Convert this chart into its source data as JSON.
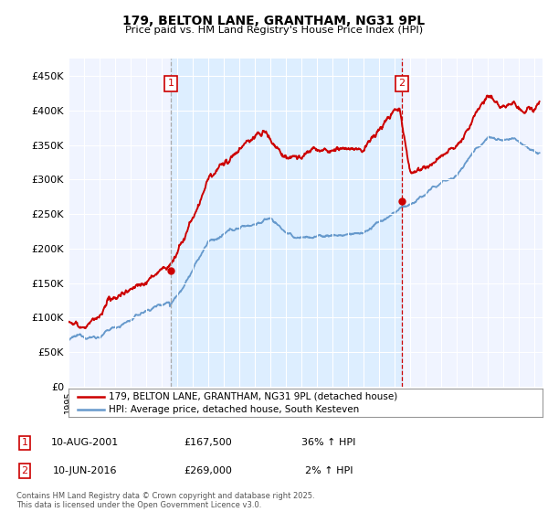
{
  "title": "179, BELTON LANE, GRANTHAM, NG31 9PL",
  "subtitle": "Price paid vs. HM Land Registry's House Price Index (HPI)",
  "legend_line1": "179, BELTON LANE, GRANTHAM, NG31 9PL (detached house)",
  "legend_line2": "HPI: Average price, detached house, South Kesteven",
  "annotation1_date": "10-AUG-2001",
  "annotation1_price": "£167,500",
  "annotation1_hpi": "36% ↑ HPI",
  "annotation2_date": "10-JUN-2016",
  "annotation2_price": "£269,000",
  "annotation2_hpi": "2% ↑ HPI",
  "footer": "Contains HM Land Registry data © Crown copyright and database right 2025.\nThis data is licensed under the Open Government Licence v3.0.",
  "red_color": "#cc0000",
  "blue_color": "#6699cc",
  "shade_color": "#ddeeff",
  "annotation_color": "#cc0000",
  "vline1_color": "#aaaaaa",
  "vline2_color": "#cc0000",
  "ylim": [
    0,
    475000
  ],
  "yticks": [
    0,
    50000,
    100000,
    150000,
    200000,
    250000,
    300000,
    350000,
    400000,
    450000
  ],
  "sale1_x": 2001.6,
  "sale1_y": 167500,
  "sale2_x": 2016.44,
  "sale2_y": 269000,
  "xmin": 1995,
  "xmax": 2025.5
}
